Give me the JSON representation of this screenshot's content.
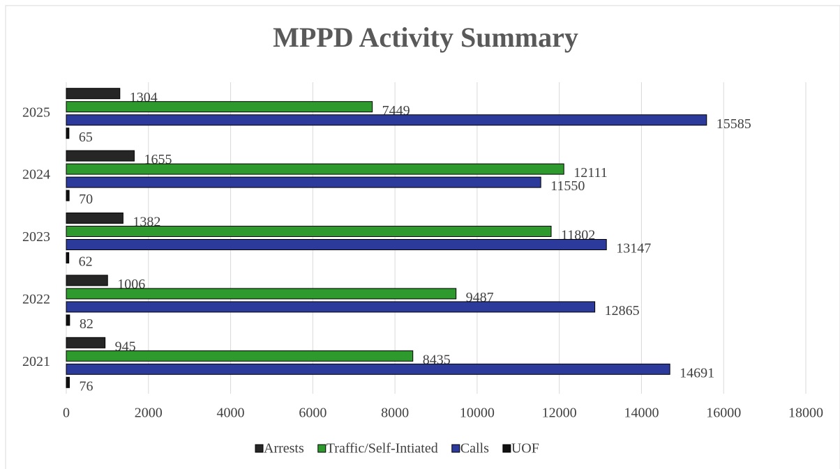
{
  "chart_data": {
    "type": "hbar",
    "title": "MPPD Activity Summary",
    "categories": [
      "2021",
      "2022",
      "2023",
      "2024",
      "2025"
    ],
    "series": [
      {
        "name": "Arrests",
        "color": "#262626",
        "values": [
          945,
          1006,
          1382,
          1655,
          1304
        ]
      },
      {
        "name": "Traffic/Self-Intiated",
        "color": "#2e9a2e",
        "values": [
          8435,
          9487,
          11802,
          12111,
          7449
        ]
      },
      {
        "name": "Calls",
        "color": "#2c3a9c",
        "values": [
          14691,
          12865,
          13147,
          11550,
          15585
        ]
      },
      {
        "name": "UOF",
        "color": "#111111",
        "values": [
          76,
          82,
          62,
          70,
          65
        ]
      }
    ],
    "xlim": [
      0,
      18000
    ],
    "xticks": [
      0,
      2000,
      4000,
      6000,
      8000,
      10000,
      12000,
      14000,
      16000,
      18000
    ],
    "grid": true,
    "legend": "bottom"
  }
}
